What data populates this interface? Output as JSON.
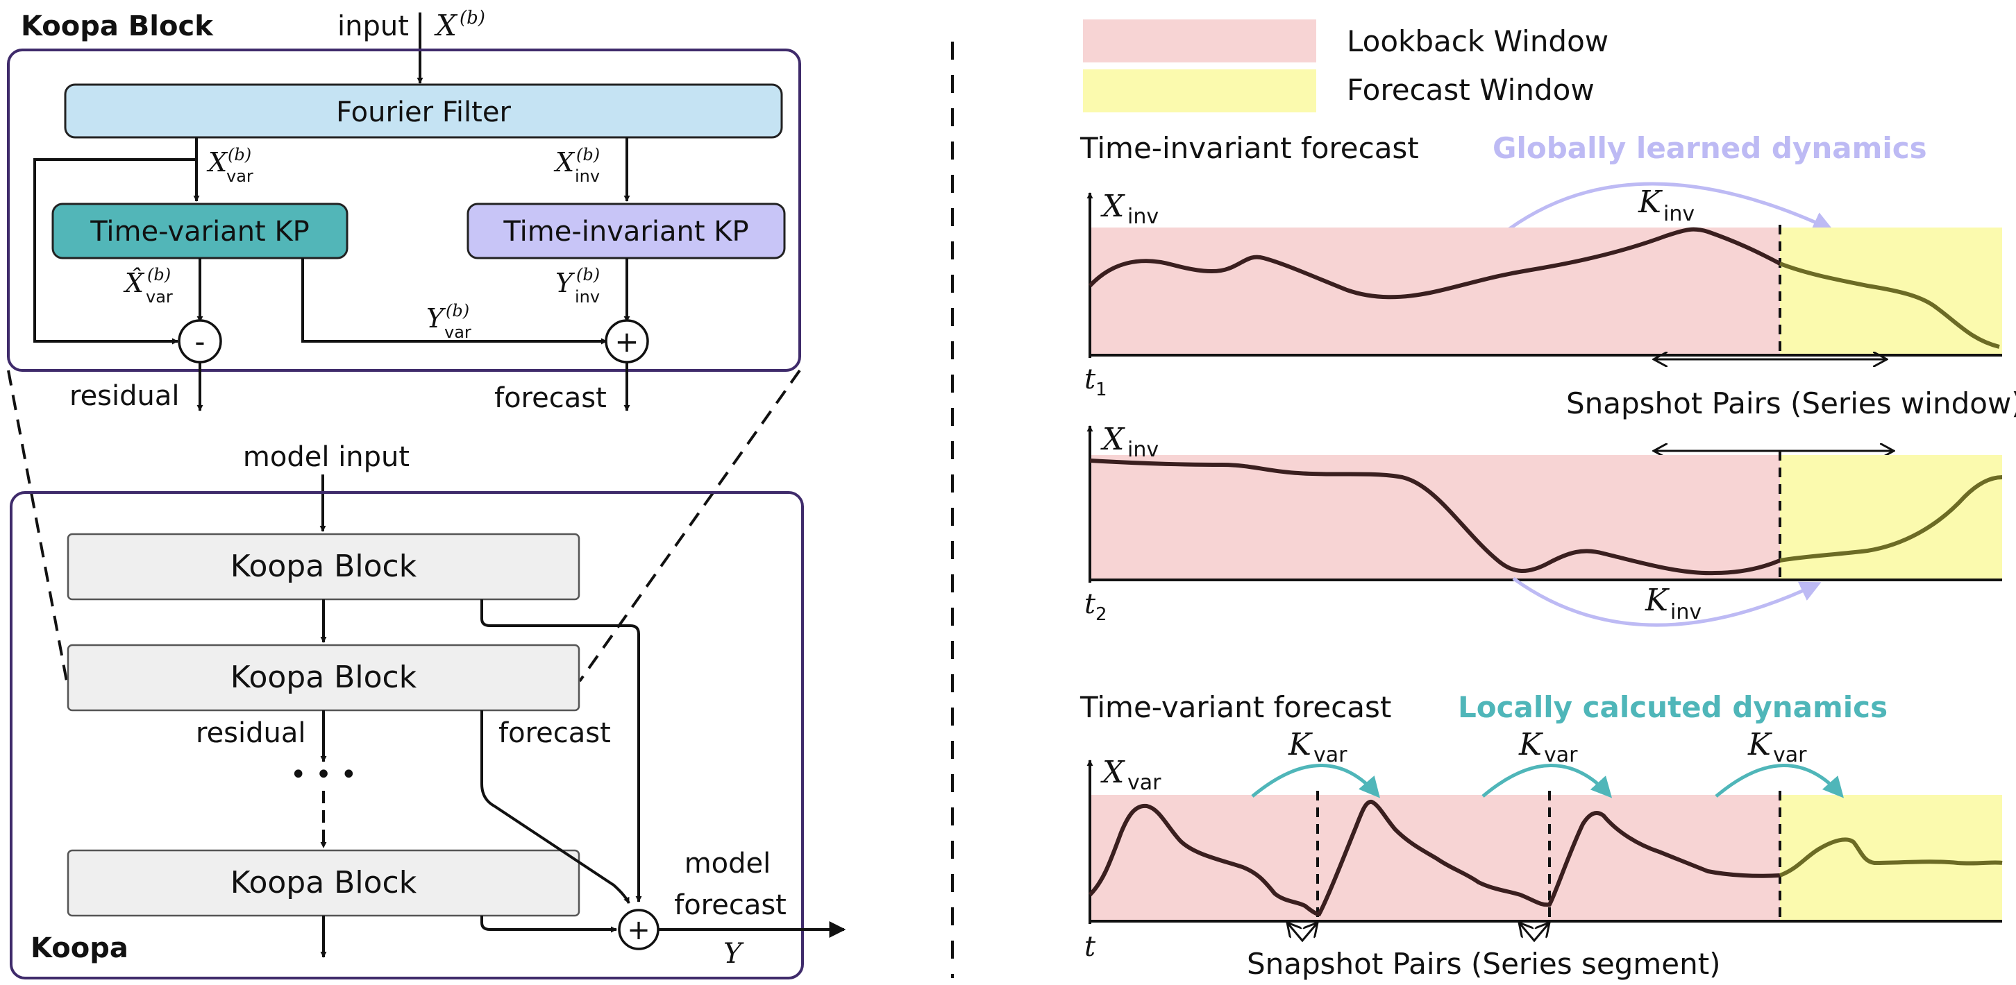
{
  "colors": {
    "filter_box": "#c5e3f3",
    "variant_box": "#52b6b8",
    "invariant_box": "#c8c5f7",
    "block_box": "#efefef",
    "frame": "#3f2b6b",
    "lookback": "#f7d4d4",
    "forecast": "#fbfaae",
    "series_dark": "#3a1f1f",
    "series_forecast": "#6c6b25",
    "global_arrow": "#bdbaf4",
    "local_arrow": "#4fb6b9"
  },
  "icons": [
    "minus-operator-icon",
    "plus-operator-icon",
    "arrow-icon",
    "dashed-separator"
  ],
  "left": {
    "koopa_block_title": "Koopa Block",
    "koopa_title": "Koopa",
    "input_label": "input",
    "input_symbol": "X",
    "input_sup": "(b)",
    "fourier_filter": "Fourier Filter",
    "xvar_main": "X",
    "xvar_sub": "var",
    "xvar_sup": "(b)",
    "xinv_main": "X",
    "xinv_sub": "inv",
    "xinv_sup": "(b)",
    "time_variant_kp": "Time-variant KP",
    "time_invariant_kp": "Time-invariant KP",
    "xhat_main": "X̂",
    "xhat_sub": "var",
    "xhat_sup": "(b)",
    "yvar_main": "Y",
    "yvar_sub": "var",
    "yvar_sup": "(b)",
    "yinv_main": "Y",
    "yinv_sub": "inv",
    "yinv_sup": "(b)",
    "minus_symbol": "-",
    "plus_symbol": "+",
    "residual_label": "residual",
    "forecast_label": "forecast",
    "model_input": "model input",
    "block_label": "Koopa Block",
    "stack_residual": "residual",
    "stack_forecast": "forecast",
    "ellipsis": "• • •",
    "model_forecast_1": "model",
    "model_forecast_2": "forecast",
    "y_symbol": "Y"
  },
  "right": {
    "legend_lookback": "Lookback Window",
    "legend_forecast": "Forecast Window",
    "inv_title": "Time-invariant forecast",
    "global_title": "Globally learned dynamics",
    "x_inv_main": "X",
    "x_inv_sub": "inv",
    "k_inv_main": "K",
    "k_inv_sub": "inv",
    "t1_main": "t",
    "t1_sub": "1",
    "t2_main": "t",
    "t2_sub": "2",
    "snapshot_window": "Snapshot Pairs (Series window)",
    "var_title": "Time-variant forecast",
    "local_title": "Locally calcuted dynamics",
    "x_var_main": "X",
    "x_var_sub": "var",
    "k_var_main": "K",
    "k_var_sub": "var",
    "t_main": "t",
    "snapshot_segment": "Snapshot Pairs (Series segment)"
  }
}
